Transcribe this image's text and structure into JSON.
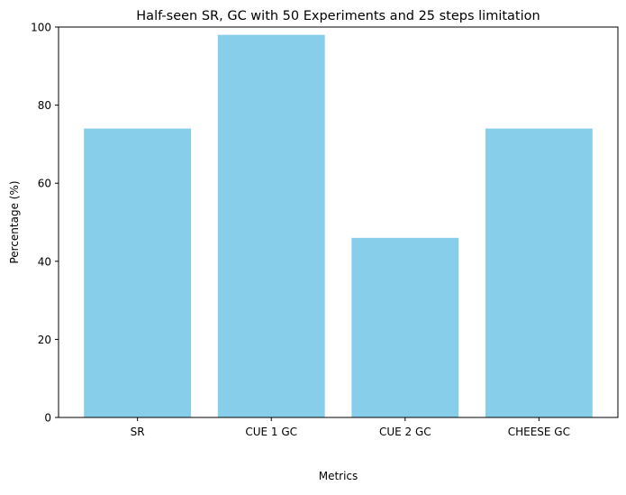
{
  "chart_data": {
    "type": "bar",
    "title": "Half-seen SR, GC with 50 Experiments and 25 steps limitation",
    "xlabel": "Metrics",
    "ylabel": "Percentage (%)",
    "categories": [
      "SR",
      "CUE 1 GC",
      "CUE 2 GC",
      "CHEESE GC"
    ],
    "values": [
      74,
      98,
      46,
      74
    ],
    "ylim": [
      0,
      100
    ],
    "yticks": [
      0,
      20,
      40,
      60,
      80,
      100
    ],
    "bar_color": "#87CEEB",
    "grid": false,
    "legend": "none"
  }
}
